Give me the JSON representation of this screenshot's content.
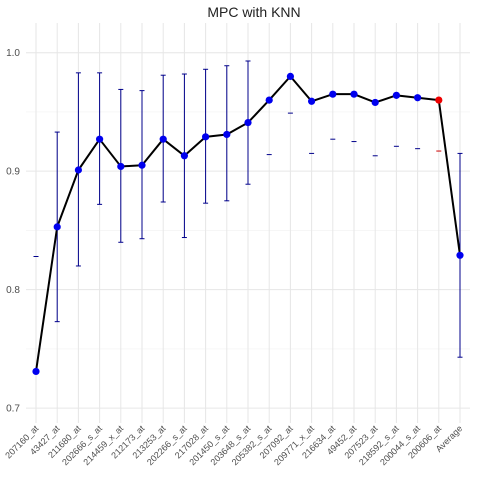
{
  "chart_data": {
    "type": "line",
    "title": "MPC with KNN",
    "xlabel": "",
    "ylabel": "",
    "ylim": [
      0.69,
      1.02
    ],
    "yticks": [
      0.7,
      0.8,
      0.9,
      1.0
    ],
    "ytick_labels": [
      "0.7",
      "0.8",
      "0.9",
      "1.0"
    ],
    "grid": true,
    "categories": [
      "207160_at",
      "43427_at",
      "211680_at",
      "202666_s_at",
      "214459_x_at",
      "212173_at",
      "213253_at",
      "202266_s_at",
      "217028_at",
      "201450_s_at",
      "203648_s_at",
      "205382_s_at",
      "207092_at",
      "209771_x_at",
      "216634_at",
      "49452_at",
      "207523_at",
      "218592_s_at",
      "200044_s_at",
      "200606_at",
      "Average"
    ],
    "values": [
      0.731,
      0.853,
      0.901,
      0.927,
      0.904,
      0.905,
      0.927,
      0.913,
      0.929,
      0.931,
      0.941,
      0.96,
      0.98,
      0.959,
      0.965,
      0.965,
      0.958,
      0.964,
      0.962,
      0.96,
      0.829
    ],
    "error_low": [
      null,
      0.773,
      0.82,
      0.872,
      0.84,
      0.843,
      0.874,
      0.844,
      0.873,
      0.875,
      0.889,
      null,
      null,
      null,
      null,
      null,
      null,
      null,
      null,
      null,
      0.743
    ],
    "error_high": [
      0.828,
      0.933,
      0.983,
      0.983,
      0.969,
      0.968,
      0.981,
      0.982,
      0.986,
      0.989,
      0.993,
      0.914,
      0.949,
      0.915,
      0.927,
      0.925,
      0.913,
      0.921,
      0.919,
      0.917,
      0.915
    ],
    "highlight_index": 19,
    "colors": {
      "line": "#000000",
      "point": "#0000ee",
      "highlight": "#ee0000",
      "errorbar": "#00008b",
      "highlight_errorbar": "#cc0000"
    }
  }
}
